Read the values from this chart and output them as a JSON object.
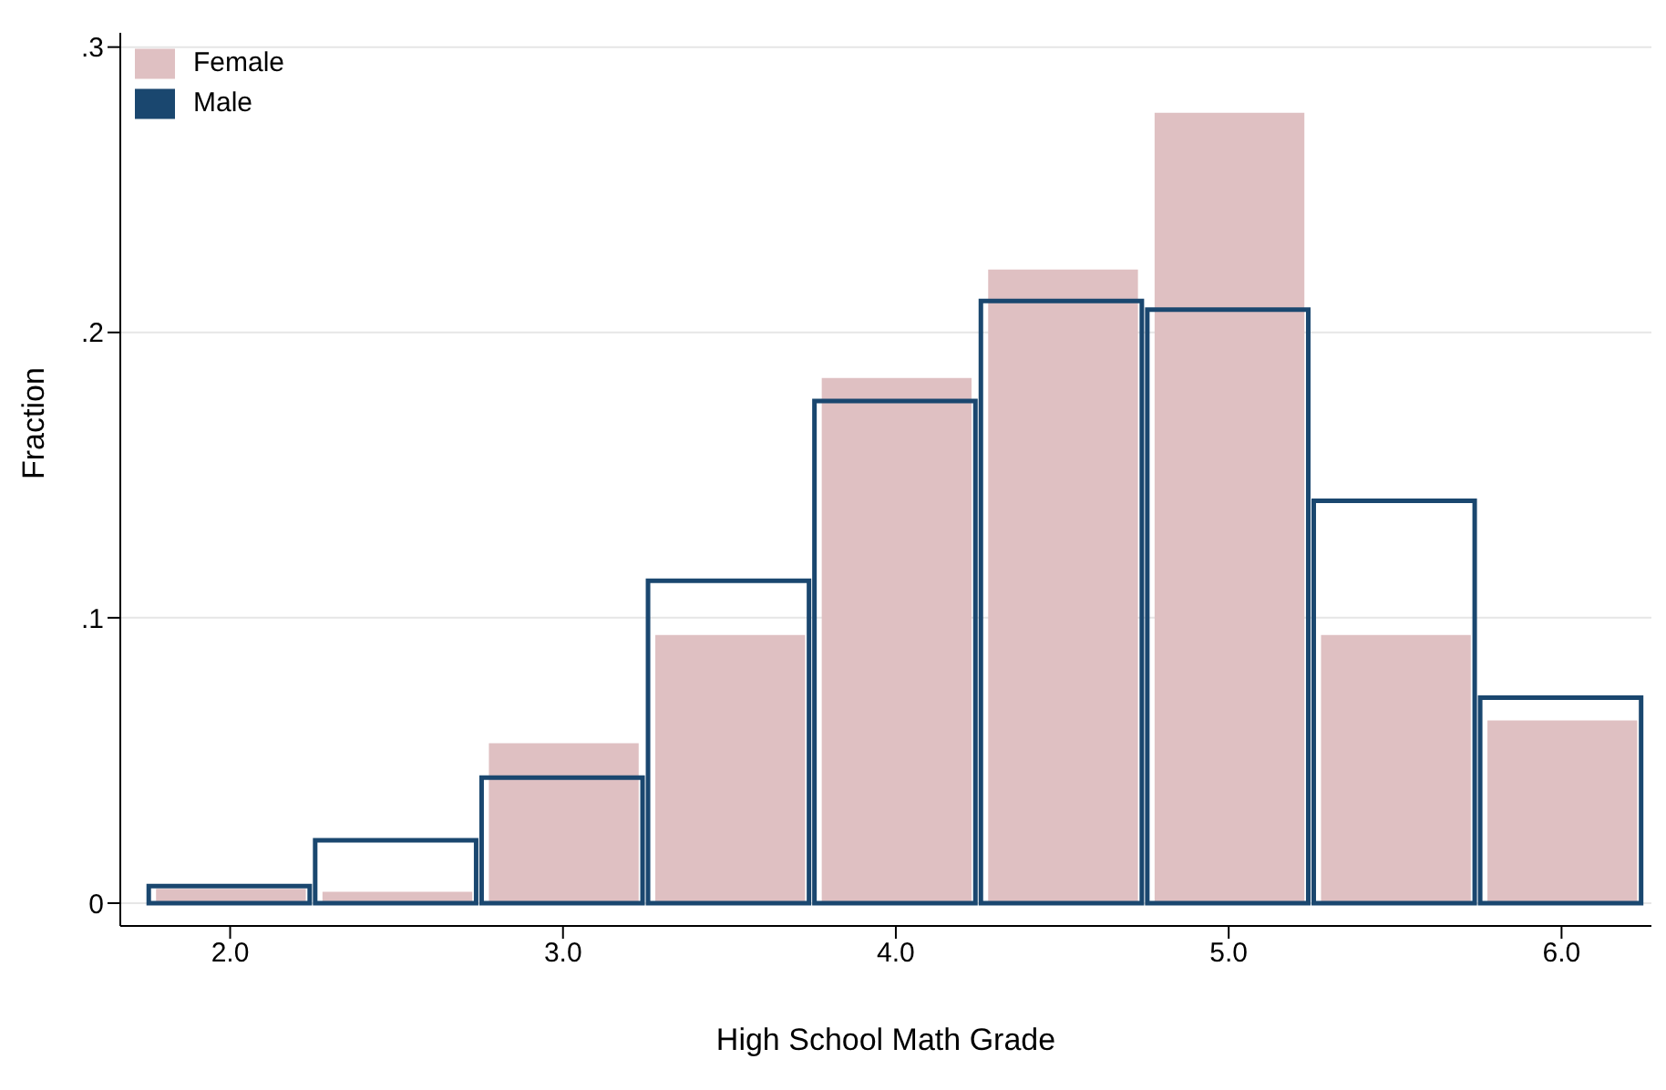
{
  "chart_data": {
    "type": "histogram",
    "xlabel": "High School Math Grade",
    "ylabel": "Fraction",
    "bins": [
      1.75,
      2.25,
      2.75,
      3.25,
      3.75,
      4.25,
      4.75,
      5.25,
      5.75,
      6.25
    ],
    "series": [
      {
        "name": "Female",
        "color": "#dfc0c2",
        "values": [
          0.005,
          0.004,
          0.056,
          0.094,
          0.184,
          0.222,
          0.277,
          0.094,
          0.064
        ]
      },
      {
        "name": "Male",
        "color": "#1a476f",
        "values": [
          0.006,
          0.022,
          0.044,
          0.113,
          0.176,
          0.211,
          0.208,
          0.141,
          0.072
        ]
      }
    ],
    "xlim": [
      1.67,
      6.27
    ],
    "xticks": [
      {
        "value": 2,
        "label": "2.0"
      },
      {
        "value": 3,
        "label": "3.0"
      },
      {
        "value": 4,
        "label": "4.0"
      },
      {
        "value": 5,
        "label": "5.0"
      },
      {
        "value": 6,
        "label": "6.0"
      }
    ],
    "ylim": [
      -0.008,
      0.305
    ],
    "yticks": [
      0,
      {
        "value": 0.1,
        "label": ".1"
      },
      {
        "value": 0.2,
        "label": ".2"
      },
      {
        "value": 0.3,
        "label": ".3"
      }
    ],
    "grid": "y",
    "legend": "top left"
  }
}
